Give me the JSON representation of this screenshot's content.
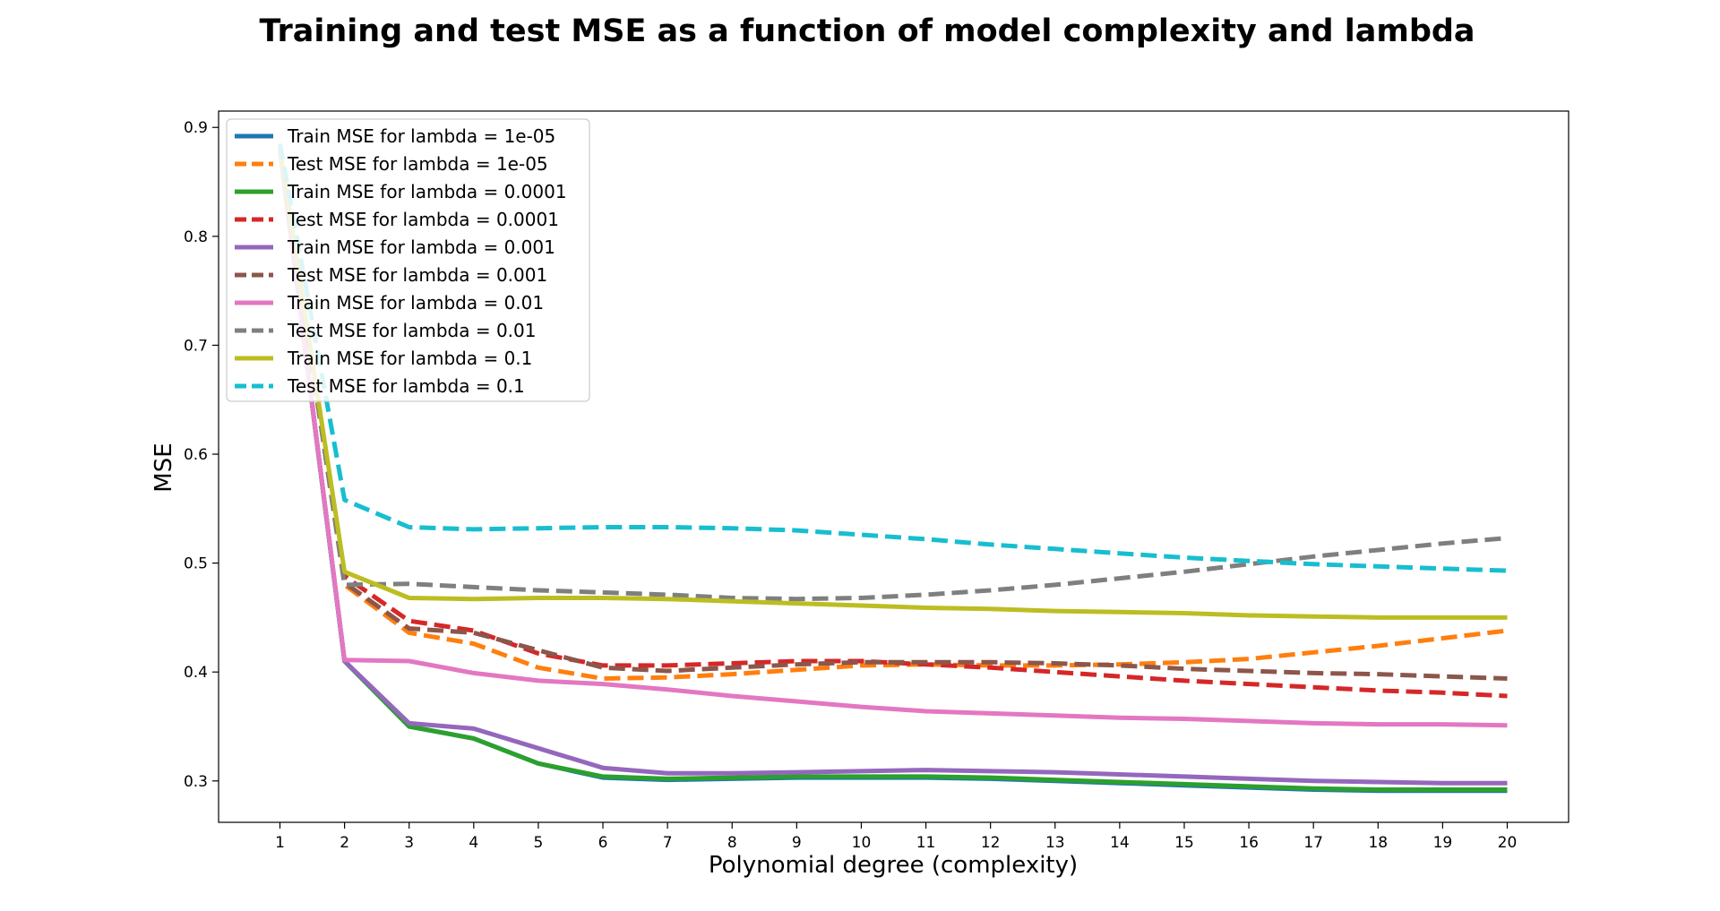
{
  "chart_data": {
    "type": "line",
    "title": "Training and test MSE as a function of model complexity and lambda",
    "xlabel": "Polynomial degree (complexity)",
    "ylabel": "MSE",
    "xlim": [
      0.05,
      20.95
    ],
    "ylim": [
      0.262,
      0.915
    ],
    "x": [
      1,
      2,
      3,
      4,
      5,
      6,
      7,
      8,
      9,
      10,
      11,
      12,
      13,
      14,
      15,
      16,
      17,
      18,
      19,
      20
    ],
    "xticks": [
      "1",
      "2",
      "3",
      "4",
      "5",
      "6",
      "7",
      "8",
      "9",
      "10",
      "11",
      "12",
      "13",
      "14",
      "15",
      "16",
      "17",
      "18",
      "19",
      "20"
    ],
    "yticks": [
      0.3,
      0.4,
      0.5,
      0.6,
      0.7,
      0.8,
      0.9
    ],
    "ytick_labels": [
      "0.3",
      "0.4",
      "0.5",
      "0.6",
      "0.7",
      "0.8",
      "0.9"
    ],
    "grid": false,
    "legend_position": "top-left",
    "series": [
      {
        "name": "Train MSE for lambda = 1e-05",
        "style": "solid",
        "color": "#1f77b4",
        "values": [
          0.88,
          0.41,
          0.35,
          0.339,
          0.316,
          0.303,
          0.301,
          0.302,
          0.303,
          0.303,
          0.303,
          0.302,
          0.3,
          0.298,
          0.296,
          0.294,
          0.292,
          0.291,
          0.291,
          0.291
        ]
      },
      {
        "name": "Test MSE for lambda = 1e-05",
        "style": "dashed",
        "color": "#ff7f0e",
        "values": [
          0.88,
          0.48,
          0.436,
          0.426,
          0.404,
          0.394,
          0.395,
          0.398,
          0.402,
          0.406,
          0.407,
          0.406,
          0.406,
          0.407,
          0.409,
          0.412,
          0.418,
          0.424,
          0.431,
          0.438
        ]
      },
      {
        "name": "Train MSE for lambda = 0.0001",
        "style": "solid",
        "color": "#2ca02c",
        "values": [
          0.88,
          0.41,
          0.35,
          0.339,
          0.316,
          0.304,
          0.302,
          0.303,
          0.304,
          0.304,
          0.304,
          0.303,
          0.301,
          0.299,
          0.297,
          0.295,
          0.293,
          0.292,
          0.292,
          0.292
        ]
      },
      {
        "name": "Test MSE for lambda = 0.0001",
        "style": "dashed",
        "color": "#d62728",
        "values": [
          0.88,
          0.488,
          0.447,
          0.438,
          0.417,
          0.406,
          0.406,
          0.408,
          0.41,
          0.41,
          0.407,
          0.404,
          0.4,
          0.396,
          0.392,
          0.389,
          0.386,
          0.383,
          0.381,
          0.378
        ]
      },
      {
        "name": "Train MSE for lambda = 0.001",
        "style": "solid",
        "color": "#9467bd",
        "values": [
          0.88,
          0.41,
          0.353,
          0.348,
          0.33,
          0.312,
          0.307,
          0.307,
          0.308,
          0.309,
          0.31,
          0.309,
          0.308,
          0.306,
          0.304,
          0.302,
          0.3,
          0.299,
          0.298,
          0.298
        ]
      },
      {
        "name": "Test MSE for lambda = 0.001",
        "style": "dashed",
        "color": "#8c564b",
        "values": [
          0.88,
          0.482,
          0.44,
          0.436,
          0.42,
          0.404,
          0.401,
          0.404,
          0.407,
          0.409,
          0.409,
          0.409,
          0.408,
          0.406,
          0.403,
          0.401,
          0.399,
          0.398,
          0.396,
          0.394
        ]
      },
      {
        "name": "Train MSE for lambda = 0.01",
        "style": "solid",
        "color": "#e377c2",
        "values": [
          0.88,
          0.411,
          0.41,
          0.399,
          0.392,
          0.389,
          0.384,
          0.378,
          0.373,
          0.368,
          0.364,
          0.362,
          0.36,
          0.358,
          0.357,
          0.355,
          0.353,
          0.352,
          0.352,
          0.351
        ]
      },
      {
        "name": "Test MSE for lambda = 0.01",
        "style": "dashed",
        "color": "#7f7f7f",
        "values": [
          0.88,
          0.48,
          0.481,
          0.478,
          0.475,
          0.473,
          0.471,
          0.468,
          0.467,
          0.468,
          0.471,
          0.475,
          0.48,
          0.486,
          0.492,
          0.499,
          0.506,
          0.512,
          0.518,
          0.523
        ]
      },
      {
        "name": "Train MSE for lambda = 0.1",
        "style": "solid",
        "color": "#bcbd22",
        "values": [
          0.88,
          0.492,
          0.468,
          0.467,
          0.468,
          0.468,
          0.467,
          0.465,
          0.463,
          0.461,
          0.459,
          0.458,
          0.456,
          0.455,
          0.454,
          0.452,
          0.451,
          0.45,
          0.45,
          0.45
        ]
      },
      {
        "name": "Test MSE for lambda = 0.1",
        "style": "dashed",
        "color": "#17becf",
        "values": [
          0.885,
          0.558,
          0.533,
          0.531,
          0.532,
          0.533,
          0.533,
          0.532,
          0.53,
          0.526,
          0.522,
          0.517,
          0.513,
          0.509,
          0.505,
          0.502,
          0.499,
          0.497,
          0.495,
          0.493
        ]
      }
    ]
  }
}
